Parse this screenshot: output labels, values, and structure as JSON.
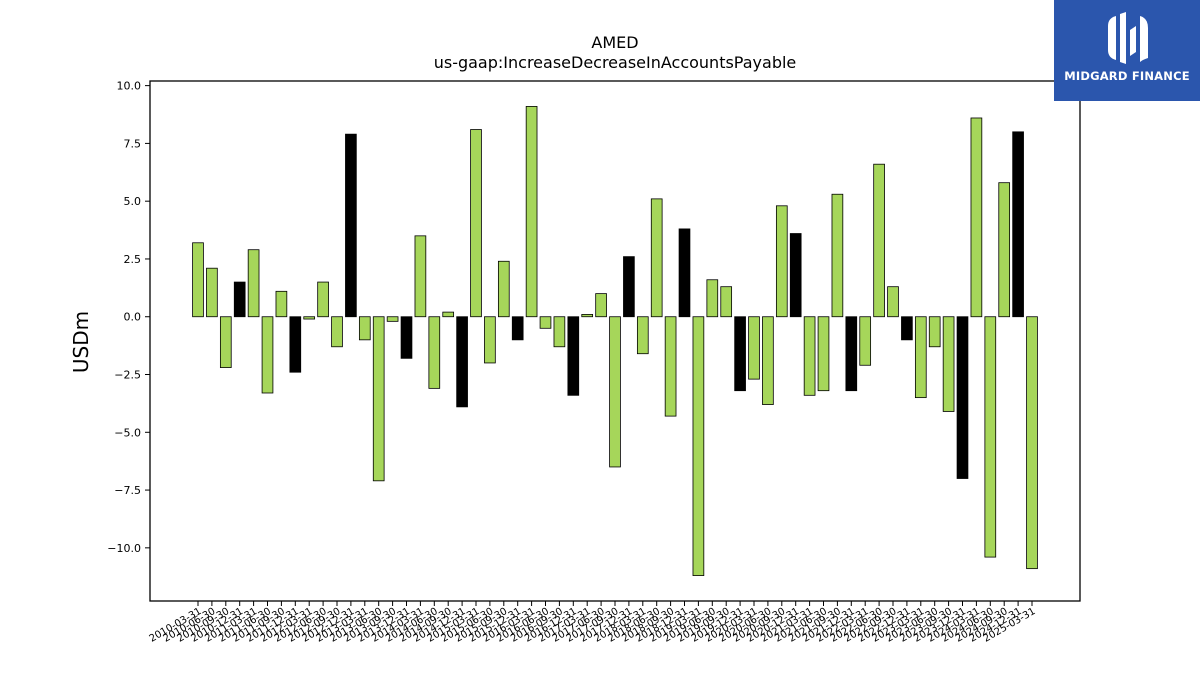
{
  "chart_data": {
    "type": "bar",
    "title": "AMED",
    "subtitle": "us-gaap:IncreaseDecreaseInAccountsPayable",
    "xlabel": "",
    "ylabel": "USDm",
    "ylim": [
      -12.3,
      10.2
    ],
    "yticks": [
      "10.0",
      "7.5",
      "5.0",
      "2.5",
      "0.0",
      "−2.5",
      "−5.0",
      "−7.5",
      "−10.0"
    ],
    "ytick_values": [
      10.0,
      7.5,
      5.0,
      2.5,
      0.0,
      -2.5,
      -5.0,
      -7.5,
      -10.0
    ],
    "grid": false,
    "colors": {
      "quarter": "#a6d65a",
      "annual": "#000000",
      "edge": "#000000"
    },
    "categories": [
      "2010-03-31",
      "2010-06-30",
      "2010-09-30",
      "2010-12-31",
      "2011-03-31",
      "2011-06-30",
      "2011-09-30",
      "2011-12-31",
      "2012-03-31",
      "2012-06-30",
      "2012-09-30",
      "2012-12-31",
      "2013-03-31",
      "2013-06-30",
      "2013-09-30",
      "2013-12-31",
      "2014-03-31",
      "2014-06-30",
      "2014-09-30",
      "2014-12-31",
      "2015-03-31",
      "2015-06-30",
      "2015-09-30",
      "2015-12-31",
      "2016-03-31",
      "2016-06-30",
      "2016-09-30",
      "2016-12-31",
      "2017-03-31",
      "2017-06-30",
      "2017-09-30",
      "2017-12-31",
      "2018-03-31",
      "2018-06-30",
      "2018-09-30",
      "2018-12-31",
      "2019-03-31",
      "2019-06-30",
      "2019-09-30",
      "2019-12-31",
      "2020-03-31",
      "2020-06-30",
      "2020-09-30",
      "2020-12-31",
      "2021-03-31",
      "2021-06-30",
      "2021-09-30",
      "2021-12-31",
      "2022-03-31",
      "2022-06-30",
      "2022-09-30",
      "2022-12-31",
      "2023-03-31",
      "2023-06-30",
      "2023-09-30",
      "2023-12-31",
      "2024-03-31",
      "2024-06-30",
      "2024-09-30",
      "2024-12-31",
      "2025-03-31"
    ],
    "values": [
      3.2,
      2.1,
      -2.2,
      1.5,
      2.9,
      -3.3,
      1.1,
      -2.4,
      -0.1,
      1.5,
      -1.3,
      7.9,
      -1.0,
      -7.1,
      -0.2,
      -1.8,
      3.5,
      -3.1,
      0.2,
      -3.9,
      8.1,
      -2.0,
      2.4,
      -1.0,
      9.1,
      -0.5,
      -1.3,
      -3.4,
      0.1,
      1.0,
      -6.5,
      2.6,
      -1.6,
      5.1,
      -4.3,
      3.8,
      -11.2,
      1.6,
      1.3,
      -3.2,
      -2.7,
      -3.8,
      4.8,
      3.6,
      -3.4,
      -3.2,
      5.3,
      -3.2,
      -2.1,
      6.6,
      1.3,
      -1.0,
      -3.5,
      -1.3,
      -4.1,
      -7.0,
      8.6,
      -10.4,
      5.8,
      8.0,
      -10.9
    ],
    "series_flags": [
      "q",
      "q",
      "q",
      "a",
      "q",
      "q",
      "q",
      "a",
      "q",
      "q",
      "q",
      "a",
      "q",
      "q",
      "q",
      "a",
      "q",
      "q",
      "q",
      "a",
      "q",
      "q",
      "q",
      "a",
      "q",
      "q",
      "q",
      "a",
      "q",
      "q",
      "q",
      "a",
      "q",
      "q",
      "q",
      "a",
      "q",
      "q",
      "q",
      "a",
      "q",
      "q",
      "q",
      "a",
      "q",
      "q",
      "q",
      "a",
      "q",
      "q",
      "q",
      "a",
      "q",
      "q",
      "q",
      "a",
      "q",
      "q",
      "q",
      "a",
      "q"
    ]
  },
  "branding": {
    "logo_text": "MIDGARD FINANCE",
    "logo_color": "#2b56ad"
  }
}
